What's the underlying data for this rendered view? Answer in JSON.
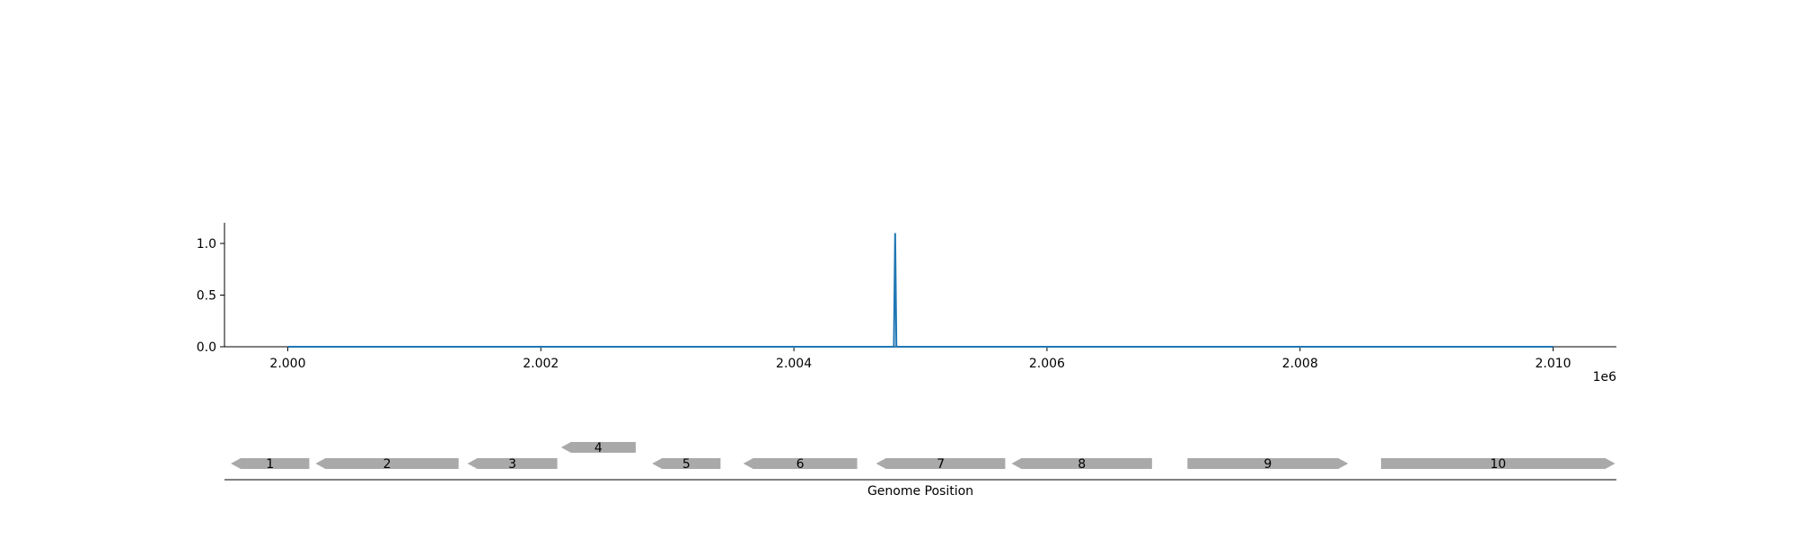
{
  "chart_data": {
    "type": "line",
    "title": "",
    "xlabel": "Genome Position",
    "ylabel": "",
    "x_offset_label": "1e6",
    "xlim": [
      1999500,
      2010500
    ],
    "ylim": [
      0,
      1.2
    ],
    "x_ticks": [
      2000000,
      2002000,
      2004000,
      2006000,
      2008000,
      2010000
    ],
    "x_tick_labels": [
      "2.000",
      "2.002",
      "2.004",
      "2.006",
      "2.008",
      "2.010"
    ],
    "y_ticks": [
      0,
      0.5,
      1.0
    ],
    "y_tick_labels": [
      "0.0",
      "0.5",
      "1.0"
    ],
    "series": [
      {
        "color": "#1f77b4",
        "x": [
          2000000,
          2004790,
          2004800,
          2004810,
          2010000
        ],
        "y": [
          0,
          0,
          1.1,
          0,
          0
        ]
      }
    ],
    "genes": [
      {
        "label": "1",
        "start": 1999550,
        "end": 2000170,
        "strand": "-",
        "row": 0
      },
      {
        "label": "2",
        "start": 2000220,
        "end": 2001350,
        "strand": "-",
        "row": 0
      },
      {
        "label": "3",
        "start": 2001420,
        "end": 2002130,
        "strand": "-",
        "row": 0
      },
      {
        "label": "4",
        "start": 2002160,
        "end": 2002750,
        "strand": "-",
        "row": 1
      },
      {
        "label": "5",
        "start": 2002880,
        "end": 2003420,
        "strand": "-",
        "row": 0
      },
      {
        "label": "6",
        "start": 2003600,
        "end": 2004500,
        "strand": "-",
        "row": 0
      },
      {
        "label": "7",
        "start": 2004650,
        "end": 2005670,
        "strand": "-",
        "row": 0
      },
      {
        "label": "8",
        "start": 2005720,
        "end": 2006830,
        "strand": "-",
        "row": 0
      },
      {
        "label": "9",
        "start": 2007110,
        "end": 2008380,
        "strand": "+",
        "row": 0
      },
      {
        "label": "10",
        "start": 2008640,
        "end": 2010490,
        "strand": "+",
        "row": 0
      }
    ],
    "gene_color": "#a9a9a9",
    "grid": false,
    "legend": "none"
  }
}
